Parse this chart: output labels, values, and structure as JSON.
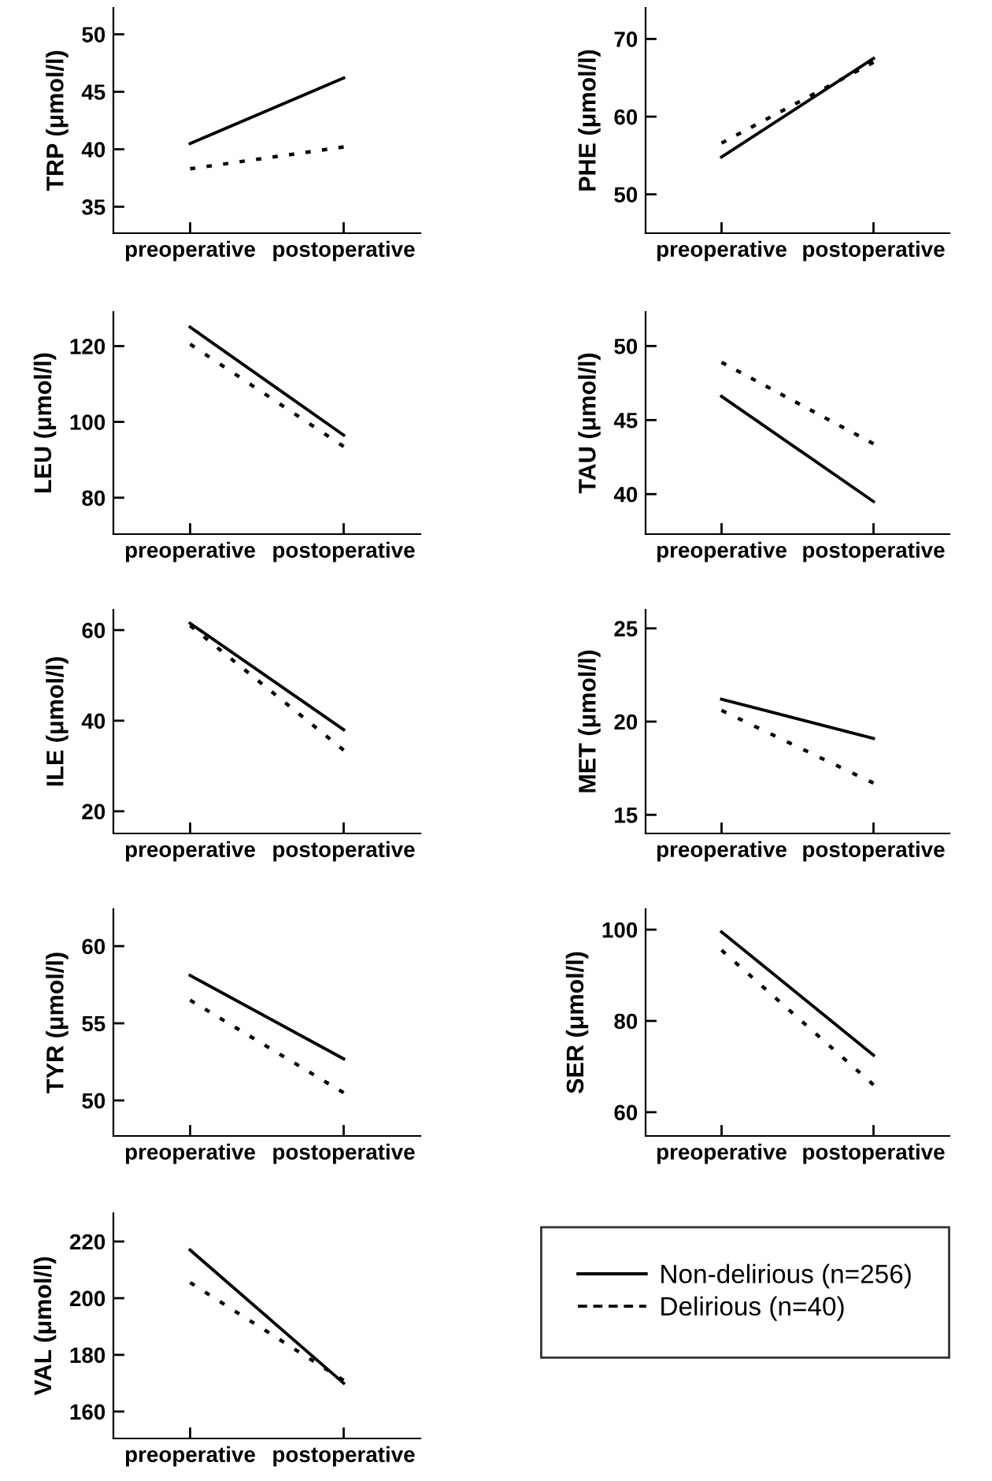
{
  "chart_data": [
    {
      "type": "line",
      "ylabel": "TRP (μmol/l)",
      "categories": [
        "preoperative",
        "postoperative"
      ],
      "ylim": [
        32.7,
        52.3
      ],
      "yticks": [
        35,
        40,
        45,
        50
      ],
      "legend": "bottom right",
      "series": [
        {
          "name": "Non-delirious (n=256)",
          "color": "#000000",
          "line_style": "solid",
          "values": [
            40.5,
            46.2
          ]
        },
        {
          "name": "Delirious (n=40)",
          "color": "#000000",
          "line_style": "dotted",
          "values": [
            38.3,
            40.2
          ]
        }
      ]
    },
    {
      "type": "line",
      "ylabel": "PHE (μmol/l)",
      "categories": [
        "preoperative",
        "postoperative"
      ],
      "ylim": [
        45,
        74
      ],
      "yticks": [
        50,
        60,
        70
      ],
      "series": [
        {
          "color": "#000000",
          "line_style": "solid",
          "values": [
            54.8,
            67.5
          ]
        },
        {
          "color": "#000000",
          "line_style": "dotted",
          "values": [
            56.6,
            67
          ]
        }
      ]
    },
    {
      "type": "line",
      "ylabel": "LEU (μmol/l)",
      "categories": [
        "preoperative",
        "postoperative"
      ],
      "ylim": [
        70.4,
        129
      ],
      "yticks": [
        80,
        100,
        120
      ],
      "series": [
        {
          "color": "#000000",
          "line_style": "solid",
          "values": [
            125,
            96.5
          ]
        },
        {
          "color": "#000000",
          "line_style": "dotted",
          "values": [
            120.5,
            93.5
          ]
        }
      ]
    },
    {
      "type": "line",
      "ylabel": "TAU (μmol/l)",
      "categories": [
        "preoperative",
        "postoperative"
      ],
      "ylim": [
        37.3,
        52.3
      ],
      "yticks": [
        40,
        45,
        50
      ],
      "series": [
        {
          "color": "#000000",
          "line_style": "solid",
          "values": [
            46.6,
            39.5
          ]
        },
        {
          "color": "#000000",
          "line_style": "dotted",
          "values": [
            48.9,
            43.4
          ]
        }
      ]
    },
    {
      "type": "line",
      "ylabel": "ILE (μmol/l)",
      "categories": [
        "preoperative",
        "postoperative"
      ],
      "ylim": [
        15.1,
        64.5
      ],
      "yticks": [
        20,
        40,
        60
      ],
      "series": [
        {
          "color": "#000000",
          "line_style": "solid",
          "values": [
            61.5,
            38
          ]
        },
        {
          "color": "#000000",
          "line_style": "dotted",
          "values": [
            61,
            33.5
          ]
        }
      ]
    },
    {
      "type": "line",
      "ylabel": "MET (μmol/l)",
      "categories": [
        "preoperative",
        "postoperative"
      ],
      "ylim": [
        14,
        26
      ],
      "yticks": [
        15,
        20,
        25
      ],
      "series": [
        {
          "color": "#000000",
          "line_style": "solid",
          "values": [
            21.2,
            19.1
          ]
        },
        {
          "color": "#000000",
          "line_style": "dotted",
          "values": [
            20.6,
            16.7
          ]
        }
      ]
    },
    {
      "type": "line",
      "ylabel": "TYR (μmol/l)",
      "categories": [
        "preoperative",
        "postoperative"
      ],
      "ylim": [
        47.7,
        62.4
      ],
      "yticks": [
        50,
        55,
        60
      ],
      "series": [
        {
          "color": "#000000",
          "line_style": "solid",
          "values": [
            58.1,
            52.7
          ]
        },
        {
          "color": "#000000",
          "line_style": "dotted",
          "values": [
            56.5,
            50.5
          ]
        }
      ]
    },
    {
      "type": "line",
      "ylabel": "SER (μmol/l)",
      "categories": [
        "preoperative",
        "postoperative"
      ],
      "ylim": [
        54.8,
        104.5
      ],
      "yticks": [
        60,
        80,
        100
      ],
      "series": [
        {
          "color": "#000000",
          "line_style": "solid",
          "values": [
            99.5,
            72.5
          ]
        },
        {
          "color": "#000000",
          "line_style": "dotted",
          "values": [
            95.5,
            66
          ]
        }
      ]
    },
    {
      "type": "line",
      "ylabel": "VAL (μmol/l)",
      "categories": [
        "preoperative",
        "postoperative"
      ],
      "ylim": [
        150.5,
        230
      ],
      "yticks": [
        160,
        180,
        200,
        220
      ],
      "series": [
        {
          "color": "#000000",
          "line_style": "solid",
          "values": [
            217,
            170
          ]
        },
        {
          "color": "#000000",
          "line_style": "dotted",
          "values": [
            205.5,
            171
          ]
        }
      ]
    }
  ]
}
